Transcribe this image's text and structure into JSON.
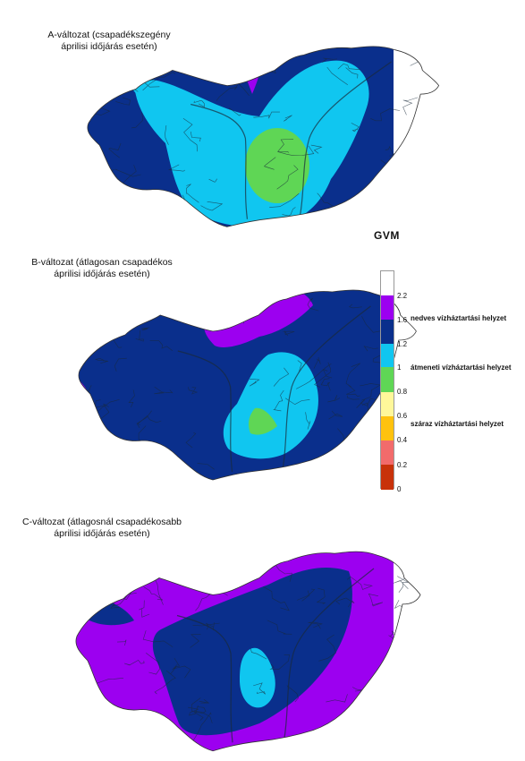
{
  "maps": [
    {
      "id": "A",
      "title": "A-változat (csapadékszegény\náprilisi időjárás esetén)",
      "dominant_classes": [
        "1.2-1.6",
        "1.6-2.0",
        "0.8-1.0",
        "2.0-2.2"
      ]
    },
    {
      "id": "B",
      "title": "B-változat (átlagosan csapadékos\náprilisi időjárás esetén)",
      "dominant_classes": [
        "1.6-2.0",
        "2.0-2.2",
        "1.2-1.6",
        "0.8-1.0"
      ]
    },
    {
      "id": "C",
      "title": "C-változat (átlagosnál csapadékosabb\náprilisi időjárás esetén)",
      "dominant_classes": [
        "2.0-2.2",
        "1.6-2.0",
        "1.2-1.6"
      ]
    }
  ],
  "legend": {
    "title": "GVM",
    "ticks": [
      "2.2",
      "1.6",
      "1.2",
      "1",
      "0.8",
      "0.6",
      "0.4",
      "0.2",
      "0"
    ],
    "classes": [
      {
        "range": "> 2.2",
        "color": "#ffffff"
      },
      {
        "range": "2.0-2.2",
        "color": "#9c00f0"
      },
      {
        "range": "1.6-2.0",
        "color": "#0a2f8c"
      },
      {
        "range": "1.2-1.6",
        "color": "#10c6f0"
      },
      {
        "range": "0.8-1.0",
        "color": "#5fd655"
      },
      {
        "range": "0.6-0.8",
        "color": "#fff79a"
      },
      {
        "range": "0.4-0.6",
        "color": "#ffc20e"
      },
      {
        "range": "0.2-0.4",
        "color": "#f26b6b"
      },
      {
        "range": "0-0.2",
        "color": "#c8320a"
      }
    ],
    "categories": [
      "nedves vízháztartási helyzet",
      "átmeneti vízháztartási helyzet",
      "száraz vízháztartási helyzet"
    ]
  },
  "colors": {
    "purple": "#9c00f0",
    "navy": "#0a2f8c",
    "cyan": "#10c6f0",
    "green": "#5fd655",
    "rivers": "#1a2a3a"
  }
}
